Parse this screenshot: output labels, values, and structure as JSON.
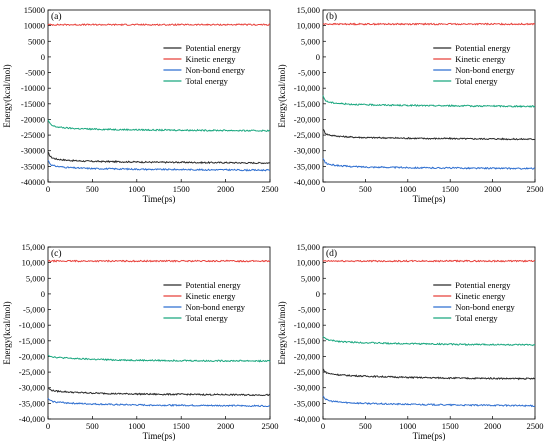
{
  "colors": {
    "potential": "#2b2b2b",
    "kinetic": "#e8403a",
    "nonbond": "#2f6fd0",
    "total": "#1aa77f"
  },
  "chart_data": [
    {
      "type": "line",
      "panel_label": "(a)",
      "xlabel": "Time(ps)",
      "ylabel": "Energy(kcal/mol)",
      "xlim": [
        0,
        2500
      ],
      "ylim": [
        -40000,
        15000
      ],
      "x_ticks": [
        "0",
        "500",
        "1000",
        "1500",
        "2000",
        "2500"
      ],
      "y_ticks": [
        "15000",
        "10000",
        "5000",
        "0",
        "-5000",
        "-10000",
        "-15000",
        "-20000",
        "-25000",
        "-30000",
        "-35000",
        "-40000"
      ],
      "legend_position": "upper-right",
      "x": [
        0,
        25,
        50,
        100,
        200,
        300,
        500,
        750,
        1000,
        1250,
        1500,
        1750,
        2000,
        2250,
        2500
      ],
      "series": [
        {
          "name": "Potential energy",
          "color_key": "potential",
          "values": [
            -30500,
            -31800,
            -32300,
            -32700,
            -33000,
            -33200,
            -33400,
            -33500,
            -33600,
            -33700,
            -33700,
            -33800,
            -33800,
            -33900,
            -33900
          ]
        },
        {
          "name": "Kinetic energy",
          "color_key": "kinetic",
          "values": [
            10300,
            10300,
            10300,
            10300,
            10300,
            10300,
            10300,
            10300,
            10300,
            10300,
            10300,
            10300,
            10300,
            10300,
            10300
          ]
        },
        {
          "name": "Non-bond energy",
          "color_key": "nonbond",
          "values": [
            -33000,
            -34200,
            -34700,
            -35000,
            -35300,
            -35500,
            -35700,
            -35800,
            -35900,
            -36000,
            -36000,
            -36100,
            -36100,
            -36200,
            -36200
          ]
        },
        {
          "name": "Total energy",
          "color_key": "total",
          "values": [
            -20200,
            -21500,
            -22000,
            -22400,
            -22700,
            -22900,
            -23100,
            -23200,
            -23300,
            -23400,
            -23400,
            -23500,
            -23500,
            -23600,
            -23600
          ]
        }
      ]
    },
    {
      "type": "line",
      "panel_label": "(b)",
      "xlabel": "Time(ps)",
      "ylabel": "Energy(kcal/mol)",
      "xlim": [
        0,
        2500
      ],
      "ylim": [
        -40000,
        15000
      ],
      "x_ticks": [
        "0",
        "500",
        "1000",
        "1500",
        "2000",
        "2500"
      ],
      "y_ticks": [
        "15,000",
        "10,000",
        "5,000",
        "0",
        "-5,000",
        "-10,000",
        "-15,000",
        "-20,000",
        "-25,000",
        "-30,000",
        "-35,000",
        "-40,000"
      ],
      "legend_position": "upper-right",
      "x": [
        0,
        25,
        50,
        100,
        200,
        300,
        500,
        750,
        1000,
        1250,
        1500,
        1750,
        2000,
        2250,
        2500
      ],
      "series": [
        {
          "name": "Potential energy",
          "color_key": "potential",
          "values": [
            -23000,
            -24300,
            -24800,
            -25100,
            -25400,
            -25600,
            -25800,
            -25900,
            -26000,
            -26100,
            -26100,
            -26200,
            -26200,
            -26300,
            -26300
          ]
        },
        {
          "name": "Kinetic energy",
          "color_key": "kinetic",
          "values": [
            10500,
            10500,
            10500,
            10500,
            10500,
            10500,
            10500,
            10500,
            10500,
            10500,
            10500,
            10500,
            10500,
            10500,
            10500
          ]
        },
        {
          "name": "Non-bond energy",
          "color_key": "nonbond",
          "values": [
            -32500,
            -33700,
            -34200,
            -34500,
            -34800,
            -35000,
            -35200,
            -35300,
            -35400,
            -35500,
            -35500,
            -35600,
            -35600,
            -35700,
            -35700
          ]
        },
        {
          "name": "Total energy",
          "color_key": "total",
          "values": [
            -12500,
            -13800,
            -14300,
            -14600,
            -14900,
            -15100,
            -15300,
            -15400,
            -15500,
            -15600,
            -15600,
            -15700,
            -15700,
            -15800,
            -15800
          ]
        }
      ]
    },
    {
      "type": "line",
      "panel_label": "(c)",
      "xlabel": "Time(ps)",
      "ylabel": "Energy(kcal/mol)",
      "xlim": [
        0,
        2500
      ],
      "ylim": [
        -40000,
        15000
      ],
      "x_ticks": [
        "0",
        "500",
        "1000",
        "1500",
        "2000",
        "2500"
      ],
      "y_ticks": [
        "15,000",
        "10,000",
        "5,000",
        "0",
        "-5,000",
        "-10,000",
        "-15,000",
        "-20,000",
        "-25,000",
        "-30,000",
        "-35,000",
        "-40,000"
      ],
      "legend_position": "upper-right",
      "x": [
        0,
        25,
        50,
        100,
        200,
        300,
        500,
        750,
        1000,
        1250,
        1500,
        1750,
        2000,
        2250,
        2500
      ],
      "series": [
        {
          "name": "Potential energy",
          "color_key": "potential",
          "values": [
            -30000,
            -30600,
            -30900,
            -31100,
            -31300,
            -31500,
            -31700,
            -31900,
            -32000,
            -32100,
            -32100,
            -32200,
            -32200,
            -32300,
            -32300
          ]
        },
        {
          "name": "Kinetic energy",
          "color_key": "kinetic",
          "values": [
            10500,
            10500,
            10500,
            10500,
            10500,
            10500,
            10500,
            10500,
            10500,
            10500,
            10500,
            10500,
            10500,
            10500,
            10500
          ]
        },
        {
          "name": "Non-bond energy",
          "color_key": "nonbond",
          "values": [
            -33500,
            -34100,
            -34400,
            -34600,
            -34800,
            -35000,
            -35200,
            -35400,
            -35500,
            -35600,
            -35600,
            -35700,
            -35700,
            -35800,
            -35800
          ]
        },
        {
          "name": "Total energy",
          "color_key": "total",
          "values": [
            -19500,
            -19900,
            -20100,
            -20300,
            -20500,
            -20700,
            -20900,
            -21100,
            -21200,
            -21300,
            -21300,
            -21400,
            -21400,
            -21400,
            -21500
          ]
        }
      ]
    },
    {
      "type": "line",
      "panel_label": "(d)",
      "xlabel": "Time(ps)",
      "ylabel": "Energy(kcal/mol)",
      "xlim": [
        0,
        2500
      ],
      "ylim": [
        -40000,
        15000
      ],
      "x_ticks": [
        "0",
        "500",
        "1000",
        "1500",
        "2000",
        "2500"
      ],
      "y_ticks": [
        "15,000",
        "10,000",
        "5,000",
        "0",
        "-5,000",
        "-10,000",
        "-15,000",
        "-20,000",
        "-25,000",
        "-30,000",
        "-35,000",
        "-40,000"
      ],
      "legend_position": "upper-right",
      "x": [
        0,
        25,
        50,
        100,
        200,
        300,
        500,
        750,
        1000,
        1250,
        1500,
        1750,
        2000,
        2250,
        2500
      ],
      "series": [
        {
          "name": "Potential energy",
          "color_key": "potential",
          "values": [
            -24000,
            -24900,
            -25300,
            -25600,
            -25900,
            -26100,
            -26300,
            -26500,
            -26700,
            -26800,
            -26900,
            -27000,
            -27000,
            -27100,
            -27100
          ]
        },
        {
          "name": "Kinetic energy",
          "color_key": "kinetic",
          "values": [
            10500,
            10500,
            10500,
            10500,
            10500,
            10500,
            10500,
            10500,
            10500,
            10500,
            10500,
            10500,
            10500,
            10500,
            10500
          ]
        },
        {
          "name": "Non-bond energy",
          "color_key": "nonbond",
          "values": [
            -32500,
            -33500,
            -34000,
            -34300,
            -34600,
            -34800,
            -35000,
            -35200,
            -35300,
            -35400,
            -35500,
            -35600,
            -35600,
            -35700,
            -35800
          ]
        },
        {
          "name": "Total energy",
          "color_key": "total",
          "values": [
            -13500,
            -14300,
            -14600,
            -14900,
            -15200,
            -15400,
            -15600,
            -15800,
            -15900,
            -16000,
            -16100,
            -16200,
            -16200,
            -16300,
            -16300
          ]
        }
      ]
    }
  ]
}
